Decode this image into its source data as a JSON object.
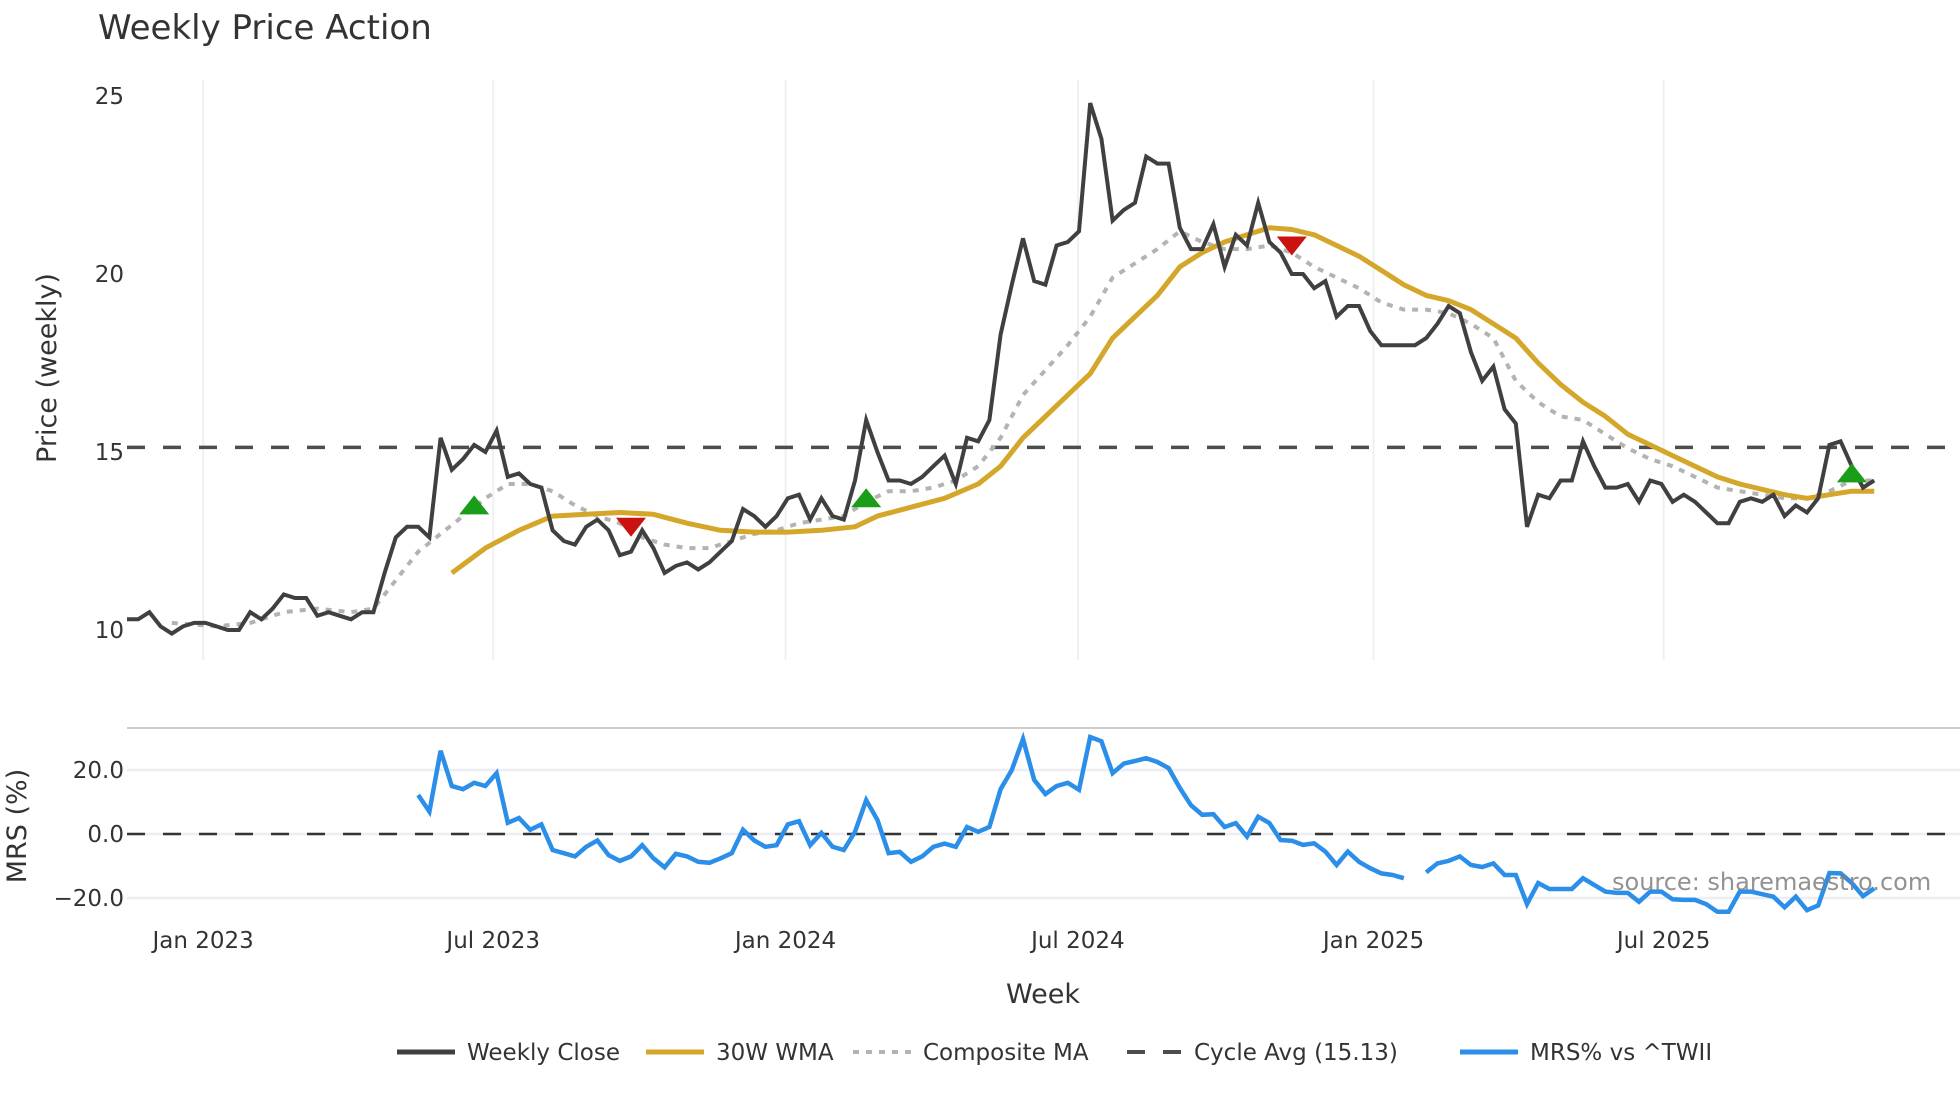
{
  "chart_data": {
    "type": "line",
    "title": "Weekly Price Action",
    "xlabel": "Week",
    "panels": [
      {
        "name": "price",
        "ylabel": "Price (weekly)",
        "yticks": [
          10,
          15,
          20,
          25
        ],
        "ylim": [
          9.3,
          25.6
        ],
        "grid": "vertical"
      },
      {
        "name": "mrs",
        "ylabel": "MRS (%)",
        "yticks": [
          20.0,
          0.0,
          -20.0
        ],
        "ytick_labels": [
          "20.0",
          "0.0",
          "−20.0"
        ],
        "ylim": [
          -28,
          34
        ],
        "grid": "horizontal"
      }
    ],
    "x_ticks": [
      {
        "label": "Jan 2023",
        "week_index": 6.8
      },
      {
        "label": "Jul 2023",
        "week_index": 32.7
      },
      {
        "label": "Jan 2024",
        "week_index": 58.8
      },
      {
        "label": "Jul 2024",
        "week_index": 84.9
      },
      {
        "label": "Jan 2025",
        "week_index": 111.3
      },
      {
        "label": "Jul 2025",
        "week_index": 137.2
      }
    ],
    "num_weeks": 157,
    "series": [
      {
        "name": "Weekly Close",
        "color": "#404040",
        "style": "solid",
        "panel": "price",
        "values": [
          10.3,
          10.3,
          10.5,
          10.1,
          9.9,
          10.1,
          10.2,
          10.2,
          10.1,
          10.0,
          10.0,
          10.5,
          10.3,
          10.6,
          11.0,
          10.9,
          10.9,
          10.4,
          10.5,
          10.4,
          10.3,
          10.5,
          10.5,
          11.6,
          12.6,
          12.9,
          12.9,
          12.6,
          15.4,
          14.5,
          14.8,
          15.2,
          15.0,
          15.6,
          14.3,
          14.4,
          14.1,
          14.0,
          12.8,
          12.5,
          12.4,
          12.9,
          13.1,
          12.8,
          12.1,
          12.2,
          12.8,
          12.3,
          11.6,
          11.8,
          11.9,
          11.7,
          11.9,
          12.2,
          12.5,
          13.4,
          13.2,
          12.9,
          13.2,
          13.7,
          13.8,
          13.1,
          13.7,
          13.2,
          13.1,
          14.2,
          15.9,
          15.0,
          14.2,
          14.2,
          14.1,
          14.3,
          14.6,
          14.9,
          14.1,
          15.4,
          15.3,
          15.9,
          18.3,
          19.7,
          21.0,
          19.8,
          19.7,
          20.8,
          20.9,
          21.2,
          24.8,
          23.8,
          21.5,
          21.8,
          22.0,
          23.3,
          23.1,
          23.1,
          21.3,
          20.7,
          20.7,
          21.4,
          20.2,
          21.1,
          20.8,
          22.0,
          20.9,
          20.6,
          20.0,
          20.0,
          19.6,
          19.8,
          18.8,
          19.1,
          19.1,
          18.4,
          18.0,
          18.0,
          18.0,
          18.0,
          18.2,
          18.6,
          19.1,
          18.9,
          17.8,
          17.0,
          17.4,
          16.2,
          15.8,
          12.9,
          13.8,
          13.7,
          14.2,
          14.2,
          15.3,
          14.6,
          14.0,
          14.0,
          14.1,
          13.6,
          14.2,
          14.1,
          13.6,
          13.8,
          13.6,
          13.3,
          13.0,
          13.0,
          13.6,
          13.7,
          13.6,
          13.8,
          13.2,
          13.5,
          13.3,
          13.7,
          15.2,
          15.3,
          14.6,
          14.0,
          14.2
        ]
      },
      {
        "name": "30W WMA",
        "color": "#d4a62a",
        "style": "solid",
        "panel": "price",
        "points": [
          [
            29,
            11.6
          ],
          [
            32,
            12.3
          ],
          [
            35,
            12.8
          ],
          [
            38,
            13.2
          ],
          [
            41,
            13.25
          ],
          [
            44,
            13.3
          ],
          [
            47,
            13.25
          ],
          [
            50,
            13.0
          ],
          [
            53,
            12.8
          ],
          [
            56,
            12.75
          ],
          [
            59,
            12.75
          ],
          [
            62,
            12.8
          ],
          [
            65,
            12.9
          ],
          [
            67,
            13.2
          ],
          [
            70,
            13.45
          ],
          [
            73,
            13.7
          ],
          [
            76,
            14.1
          ],
          [
            78,
            14.6
          ],
          [
            80,
            15.4
          ],
          [
            82,
            16.0
          ],
          [
            84,
            16.6
          ],
          [
            86,
            17.2
          ],
          [
            88,
            18.2
          ],
          [
            90,
            18.8
          ],
          [
            92,
            19.4
          ],
          [
            94,
            20.2
          ],
          [
            96,
            20.6
          ],
          [
            98,
            20.9
          ],
          [
            100,
            21.1
          ],
          [
            102,
            21.3
          ],
          [
            104,
            21.25
          ],
          [
            106,
            21.1
          ],
          [
            108,
            20.8
          ],
          [
            110,
            20.5
          ],
          [
            112,
            20.1
          ],
          [
            114,
            19.7
          ],
          [
            116,
            19.4
          ],
          [
            118,
            19.25
          ],
          [
            120,
            19.0
          ],
          [
            122,
            18.6
          ],
          [
            124,
            18.2
          ],
          [
            126,
            17.5
          ],
          [
            128,
            16.9
          ],
          [
            130,
            16.4
          ],
          [
            132,
            16.0
          ],
          [
            134,
            15.5
          ],
          [
            136,
            15.2
          ],
          [
            138,
            14.9
          ],
          [
            140,
            14.6
          ],
          [
            142,
            14.3
          ],
          [
            144,
            14.1
          ],
          [
            146,
            13.95
          ],
          [
            148,
            13.8
          ],
          [
            150,
            13.7
          ],
          [
            152,
            13.8
          ],
          [
            154,
            13.9
          ],
          [
            156,
            13.9
          ]
        ]
      },
      {
        "name": "Composite MA",
        "color": "#b3b3b3",
        "style": "dotted",
        "panel": "price",
        "points": [
          [
            4,
            10.2
          ],
          [
            8,
            10.1
          ],
          [
            11,
            10.2
          ],
          [
            14,
            10.5
          ],
          [
            17,
            10.6
          ],
          [
            20,
            10.5
          ],
          [
            22,
            10.6
          ],
          [
            24,
            11.4
          ],
          [
            26,
            12.2
          ],
          [
            28,
            12.7
          ],
          [
            30,
            13.2
          ],
          [
            32,
            13.7
          ],
          [
            34,
            14.1
          ],
          [
            36,
            14.1
          ],
          [
            38,
            13.9
          ],
          [
            40,
            13.5
          ],
          [
            42,
            13.2
          ],
          [
            44,
            13.0
          ],
          [
            46,
            12.6
          ],
          [
            48,
            12.4
          ],
          [
            50,
            12.3
          ],
          [
            52,
            12.3
          ],
          [
            54,
            12.5
          ],
          [
            56,
            12.7
          ],
          [
            58,
            12.8
          ],
          [
            60,
            13.0
          ],
          [
            62,
            13.1
          ],
          [
            64,
            13.2
          ],
          [
            66,
            13.6
          ],
          [
            68,
            13.9
          ],
          [
            70,
            13.9
          ],
          [
            72,
            14.0
          ],
          [
            74,
            14.2
          ],
          [
            76,
            14.6
          ],
          [
            78,
            15.4
          ],
          [
            80,
            16.6
          ],
          [
            82,
            17.3
          ],
          [
            84,
            18.0
          ],
          [
            86,
            18.8
          ],
          [
            88,
            19.9
          ],
          [
            90,
            20.3
          ],
          [
            92,
            20.7
          ],
          [
            94,
            21.2
          ],
          [
            96,
            20.9
          ],
          [
            98,
            20.7
          ],
          [
            100,
            20.7
          ],
          [
            102,
            20.8
          ],
          [
            104,
            20.6
          ],
          [
            106,
            20.2
          ],
          [
            108,
            19.9
          ],
          [
            110,
            19.6
          ],
          [
            112,
            19.2
          ],
          [
            114,
            19.0
          ],
          [
            116,
            19.0
          ],
          [
            118,
            18.9
          ],
          [
            120,
            18.6
          ],
          [
            122,
            18.2
          ],
          [
            124,
            17.0
          ],
          [
            126,
            16.4
          ],
          [
            128,
            16.0
          ],
          [
            130,
            15.9
          ],
          [
            132,
            15.5
          ],
          [
            134,
            15.1
          ],
          [
            136,
            14.8
          ],
          [
            138,
            14.6
          ],
          [
            140,
            14.3
          ],
          [
            142,
            14.0
          ],
          [
            144,
            13.9
          ],
          [
            146,
            13.8
          ],
          [
            148,
            13.7
          ],
          [
            150,
            13.7
          ],
          [
            152,
            13.9
          ],
          [
            154,
            14.2
          ],
          [
            156,
            14.2
          ]
        ]
      },
      {
        "name": "Cycle Avg (15.13)",
        "color": "#4d4d4d",
        "style": "dashed",
        "panel": "price",
        "value": 15.13
      },
      {
        "name": "MRS% vs ^TWII",
        "color": "#2b8fea",
        "style": "solid",
        "panel": "mrs",
        "start_index": 26,
        "values": [
          12.2,
          7.0,
          26.0,
          15.0,
          14.0,
          16.0,
          15.0,
          19.0,
          3.5,
          5.0,
          1.3,
          3.0,
          -5.0,
          -6.0,
          -7.0,
          -4.0,
          -2.0,
          -6.6,
          -8.4,
          -7.0,
          -3.5,
          -7.6,
          -10.4,
          -6.2,
          -7.0,
          -8.7,
          -9.0,
          -7.6,
          -6.0,
          1.3,
          -2.0,
          -4.0,
          -3.5,
          3.0,
          4.0,
          -3.5,
          0.3,
          -4.0,
          -5.0,
          0.7,
          10.6,
          4.4,
          -6.0,
          -5.6,
          -8.7,
          -7.0,
          -4.0,
          -3.0,
          -4.0,
          2.2,
          0.7,
          2.2,
          14.0,
          20.0,
          29.7,
          16.9,
          12.5,
          15.0,
          16.0,
          13.8,
          30.3,
          29.0,
          19.0,
          22.0,
          22.8,
          23.7,
          22.5,
          20.6,
          14.4,
          9.0,
          6.0,
          6.2,
          2.2,
          3.4,
          -0.8,
          5.4,
          3.4,
          -1.9,
          -2.1,
          -3.4,
          -2.9,
          -5.5,
          -9.7,
          -5.5,
          -8.7,
          -10.7,
          -12.3,
          -12.8,
          -13.8,
          null,
          -12.0,
          -9.2,
          -8.4,
          -7.0,
          -9.7,
          -10.3,
          -9.2,
          -12.8,
          -12.8,
          -21.9,
          -15.3,
          -17.2,
          -17.2,
          -17.2,
          -13.8,
          -15.9,
          -18.0,
          -18.4,
          -18.4,
          -21.2,
          -18.0,
          -18.0,
          -20.4,
          -20.6,
          -20.6,
          -21.9,
          -24.3,
          -24.3,
          -18.0,
          -18.0,
          -18.8,
          -19.6,
          -22.9,
          -19.6,
          -23.8,
          -22.3,
          -12.2,
          -12.3,
          -15.3,
          -19.4,
          -17.0
        ]
      },
      {
        "name": "MRS zero line",
        "color": "#333333",
        "style": "dashed",
        "panel": "mrs",
        "value": 0
      }
    ],
    "markers": [
      {
        "type": "buy",
        "shape": "triangle-up",
        "color": "#1a9e1a",
        "week_index": 31,
        "price": 13.5
      },
      {
        "type": "sell",
        "shape": "triangle-down",
        "color": "#cc1111",
        "week_index": 45,
        "price": 12.9
      },
      {
        "type": "buy",
        "shape": "triangle-up",
        "color": "#1a9e1a",
        "week_index": 66,
        "price": 13.7
      },
      {
        "type": "sell",
        "shape": "triangle-down",
        "color": "#cc1111",
        "week_index": 104,
        "price": 20.8
      },
      {
        "type": "buy",
        "shape": "triangle-up",
        "color": "#1a9e1a",
        "week_index": 154,
        "price": 14.4
      }
    ],
    "legend": {
      "position": "bottom",
      "items": [
        {
          "label": "Weekly Close",
          "color": "#404040",
          "style": "solid"
        },
        {
          "label": "30W WMA",
          "color": "#d4a62a",
          "style": "solid"
        },
        {
          "label": "Composite MA",
          "color": "#b3b3b3",
          "style": "dotted"
        },
        {
          "label": "Cycle Avg (15.13)",
          "color": "#4d4d4d",
          "style": "dashed"
        },
        {
          "label": "MRS% vs ^TWII",
          "color": "#2b8fea",
          "style": "solid"
        }
      ]
    },
    "annotation": "source: sharemaestro.com"
  }
}
